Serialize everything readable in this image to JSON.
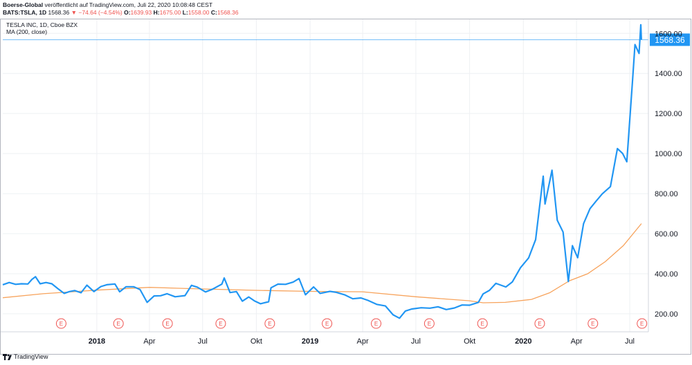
{
  "header": {
    "publisher": "Boerse-Global",
    "published_text": "veröffentlicht auf TradingView.com, Juli 22, 2020 10:08:48 CEST",
    "symbol": "BATS:TSLA, 1D",
    "last": "1568.36",
    "change": "▼ −74.64 (−4.54%)",
    "o_label": "O:",
    "o_value": "1639.93",
    "h_label": "H:",
    "h_value": "1675.00",
    "l_label": "L:",
    "l_value": "1558.00",
    "c_label": "C:",
    "c_value": "1568.36"
  },
  "legend": {
    "title": "TESLA INC, 1D, Cboe BZX",
    "indicator": "MA (200, close)"
  },
  "footer": {
    "brand": "TradingView"
  },
  "colors": {
    "price": "#2196f3",
    "ma": "#f7a35c",
    "grid": "#eef0f3",
    "earnings": "#ef5350"
  },
  "chart_data": {
    "type": "line",
    "x_type": "date",
    "ylim": [
      110,
      1670
    ],
    "y_ticks": [
      "200.00",
      "400.00",
      "600.00",
      "800.00",
      "1000.00",
      "1200.00",
      "1400.00",
      "1600.00"
    ],
    "x_ticks": [
      {
        "label": "2018",
        "date": "2018-01-01",
        "bold": true
      },
      {
        "label": "Apr",
        "date": "2018-04-01"
      },
      {
        "label": "Jul",
        "date": "2018-07-01"
      },
      {
        "label": "Okt",
        "date": "2018-10-01"
      },
      {
        "label": "2019",
        "date": "2019-01-01",
        "bold": true
      },
      {
        "label": "Apr",
        "date": "2019-04-01"
      },
      {
        "label": "Jul",
        "date": "2019-07-01"
      },
      {
        "label": "Okt",
        "date": "2019-10-01"
      },
      {
        "label": "2020",
        "date": "2020-01-01",
        "bold": true
      },
      {
        "label": "Apr",
        "date": "2020-04-01"
      },
      {
        "label": "Jul",
        "date": "2020-07-01"
      }
    ],
    "last_price": {
      "value": 1568.36,
      "label": "1568.36"
    },
    "earnings_marker_label": "E",
    "earnings_dates": [
      "2017-11-01",
      "2018-02-07",
      "2018-05-02",
      "2018-08-01",
      "2018-10-24",
      "2019-01-30",
      "2019-04-24",
      "2019-07-24",
      "2019-10-23",
      "2020-01-29",
      "2020-04-29",
      "2020-07-22"
    ],
    "series": [
      {
        "name": "TESLA INC",
        "points": [
          [
            "2017-07-24",
            345
          ],
          [
            "2017-08-04",
            356
          ],
          [
            "2017-08-15",
            347
          ],
          [
            "2017-08-25",
            350
          ],
          [
            "2017-09-05",
            349
          ],
          [
            "2017-09-12",
            372
          ],
          [
            "2017-09-18",
            385
          ],
          [
            "2017-09-26",
            350
          ],
          [
            "2017-10-06",
            356
          ],
          [
            "2017-10-16",
            350
          ],
          [
            "2017-10-26",
            326
          ],
          [
            "2017-11-06",
            302
          ],
          [
            "2017-11-15",
            311
          ],
          [
            "2017-11-24",
            316
          ],
          [
            "2017-12-05",
            305
          ],
          [
            "2017-12-15",
            343
          ],
          [
            "2017-12-27",
            311
          ],
          [
            "2018-01-08",
            336
          ],
          [
            "2018-01-18",
            345
          ],
          [
            "2018-02-01",
            349
          ],
          [
            "2018-02-09",
            310
          ],
          [
            "2018-02-20",
            335
          ],
          [
            "2018-03-05",
            335
          ],
          [
            "2018-03-16",
            321
          ],
          [
            "2018-03-28",
            257
          ],
          [
            "2018-04-09",
            289
          ],
          [
            "2018-04-20",
            290
          ],
          [
            "2018-05-01",
            300
          ],
          [
            "2018-05-15",
            285
          ],
          [
            "2018-06-01",
            291
          ],
          [
            "2018-06-12",
            342
          ],
          [
            "2018-06-22",
            333
          ],
          [
            "2018-07-06",
            309
          ],
          [
            "2018-07-18",
            323
          ],
          [
            "2018-08-03",
            348
          ],
          [
            "2018-08-07",
            379
          ],
          [
            "2018-08-17",
            306
          ],
          [
            "2018-08-28",
            311
          ],
          [
            "2018-09-07",
            263
          ],
          [
            "2018-09-18",
            284
          ],
          [
            "2018-09-28",
            264
          ],
          [
            "2018-10-08",
            250
          ],
          [
            "2018-10-22",
            260
          ],
          [
            "2018-10-26",
            330
          ],
          [
            "2018-11-07",
            348
          ],
          [
            "2018-11-20",
            347
          ],
          [
            "2018-12-03",
            358
          ],
          [
            "2018-12-13",
            376
          ],
          [
            "2018-12-24",
            295
          ],
          [
            "2019-01-07",
            334
          ],
          [
            "2019-01-18",
            302
          ],
          [
            "2019-02-04",
            312
          ],
          [
            "2019-02-15",
            307
          ],
          [
            "2019-03-01",
            295
          ],
          [
            "2019-03-15",
            275
          ],
          [
            "2019-03-29",
            279
          ],
          [
            "2019-04-10",
            267
          ],
          [
            "2019-04-25",
            247
          ],
          [
            "2019-05-10",
            239
          ],
          [
            "2019-05-23",
            195
          ],
          [
            "2019-06-03",
            178
          ],
          [
            "2019-06-13",
            214
          ],
          [
            "2019-06-24",
            224
          ],
          [
            "2019-07-10",
            230
          ],
          [
            "2019-07-25",
            228
          ],
          [
            "2019-08-08",
            235
          ],
          [
            "2019-08-22",
            221
          ],
          [
            "2019-09-05",
            229
          ],
          [
            "2019-09-18",
            244
          ],
          [
            "2019-10-01",
            243
          ],
          [
            "2019-10-16",
            257
          ],
          [
            "2019-10-24",
            299
          ],
          [
            "2019-11-04",
            317
          ],
          [
            "2019-11-15",
            352
          ],
          [
            "2019-12-02",
            334
          ],
          [
            "2019-12-13",
            359
          ],
          [
            "2019-12-27",
            430
          ],
          [
            "2020-01-10",
            479
          ],
          [
            "2020-01-22",
            570
          ],
          [
            "2020-02-04",
            887
          ],
          [
            "2020-02-07",
            748
          ],
          [
            "2020-02-19",
            917
          ],
          [
            "2020-02-28",
            667
          ],
          [
            "2020-03-09",
            608
          ],
          [
            "2020-03-18",
            361
          ],
          [
            "2020-03-25",
            540
          ],
          [
            "2020-04-03",
            480
          ],
          [
            "2020-04-13",
            650
          ],
          [
            "2020-04-24",
            725
          ],
          [
            "2020-05-04",
            761
          ],
          [
            "2020-05-15",
            799
          ],
          [
            "2020-05-29",
            835
          ],
          [
            "2020-06-10",
            1025
          ],
          [
            "2020-06-19",
            1000
          ],
          [
            "2020-06-26",
            959
          ],
          [
            "2020-07-06",
            1371
          ],
          [
            "2020-07-10",
            1544
          ],
          [
            "2020-07-17",
            1500
          ],
          [
            "2020-07-20",
            1643
          ],
          [
            "2020-07-21",
            1568
          ]
        ]
      },
      {
        "name": "MA (200, close)",
        "points": [
          [
            "2017-07-24",
            280
          ],
          [
            "2017-10-01",
            300
          ],
          [
            "2018-01-01",
            318
          ],
          [
            "2018-04-01",
            332
          ],
          [
            "2018-07-01",
            324
          ],
          [
            "2018-10-01",
            317
          ],
          [
            "2019-01-01",
            312
          ],
          [
            "2019-04-01",
            310
          ],
          [
            "2019-07-01",
            285
          ],
          [
            "2019-10-01",
            265
          ],
          [
            "2019-10-24",
            255
          ],
          [
            "2019-12-01",
            257
          ],
          [
            "2020-01-15",
            272
          ],
          [
            "2020-02-15",
            305
          ],
          [
            "2020-03-20",
            365
          ],
          [
            "2020-04-20",
            400
          ],
          [
            "2020-05-20",
            460
          ],
          [
            "2020-06-20",
            540
          ],
          [
            "2020-07-21",
            650
          ]
        ]
      }
    ]
  }
}
